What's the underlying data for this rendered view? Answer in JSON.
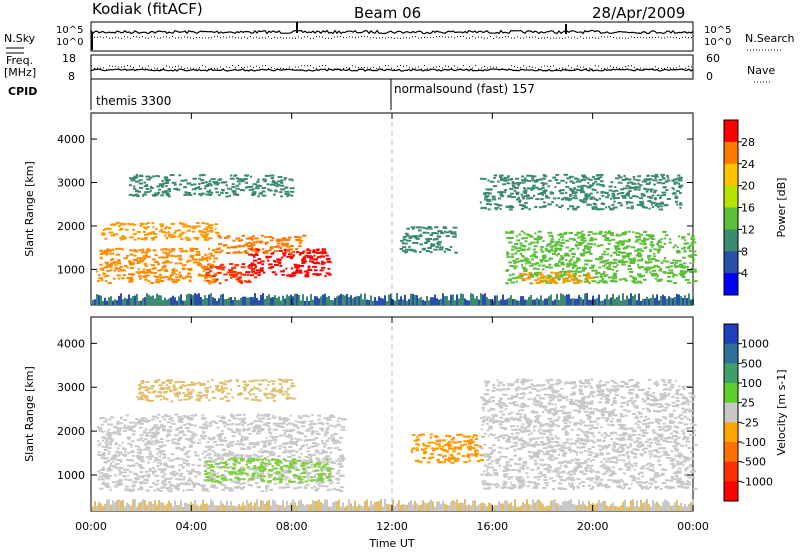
{
  "header": {
    "station": "Kodiak (fitACF)",
    "beam": "Beam 06",
    "date": "28/Apr/2009"
  },
  "top_panels": {
    "nsky": {
      "label": "N.Sky",
      "ticks": [
        "10^5",
        "10^0"
      ],
      "right_ticks": [
        "10^5",
        "10^0"
      ],
      "right_label": "N.Search",
      "right_label_style": "dotted"
    },
    "freq": {
      "label_line1": "Freq.",
      "label_line2": "[MHz]",
      "ticks": [
        "18",
        "8"
      ],
      "right_ticks": [
        "60",
        "0"
      ],
      "right_label": "Nave",
      "right_label_style": "dotted"
    },
    "cpid": {
      "label": "CPID",
      "segments": [
        {
          "start_hour": 0,
          "label": "themis 3300"
        },
        {
          "start_hour": 12,
          "label": "normalsound (fast) 157"
        }
      ]
    }
  },
  "chart_data": [
    {
      "type": "heatmap",
      "name": "power",
      "x_range_hours": [
        0,
        24
      ],
      "ylim": [
        180,
        4600
      ],
      "ylabel": "Slant Range [km]",
      "yticks": [
        1000,
        2000,
        3000,
        4000
      ],
      "colorbar": {
        "label": "Power [dB]",
        "ticks": [
          "28",
          "24",
          "20",
          "16",
          "12",
          "8",
          "4"
        ],
        "colors": [
          "#ff0000",
          "#ff7a00",
          "#ffc200",
          "#b5e300",
          "#5cbf3a",
          "#3d8a72",
          "#2a4fa8",
          "#0000ff"
        ]
      },
      "regions": [
        {
          "h0": 6.0,
          "h1": 9.5,
          "r0": 850,
          "r1": 1500,
          "c": "#ff0000"
        },
        {
          "h0": 4.5,
          "h1": 6.5,
          "r0": 700,
          "r1": 1150,
          "c": "#ff3300"
        },
        {
          "h0": 0.2,
          "h1": 5.0,
          "r0": 700,
          "r1": 1500,
          "c": "#ff8c00"
        },
        {
          "h0": 0.3,
          "h1": 5.0,
          "r0": 1700,
          "r1": 2100,
          "c": "#ff9900"
        },
        {
          "h0": 5.0,
          "h1": 8.5,
          "r0": 1400,
          "r1": 1800,
          "c": "#ff7a00"
        },
        {
          "h0": 12.3,
          "h1": 14.5,
          "r0": 1400,
          "r1": 2000,
          "c": "#3d8a72"
        },
        {
          "h0": 16.5,
          "h1": 24.0,
          "r0": 700,
          "r1": 1900,
          "c": "#5cbf3a"
        },
        {
          "h0": 17.0,
          "h1": 20.0,
          "r0": 700,
          "r1": 950,
          "c": "#ff9900"
        },
        {
          "h0": 15.5,
          "h1": 23.5,
          "r0": 2400,
          "r1": 3200,
          "c": "#3d8a72"
        },
        {
          "h0": 1.5,
          "h1": 8.0,
          "r0": 2700,
          "r1": 3200,
          "c": "#3d8a72"
        }
      ]
    },
    {
      "type": "heatmap",
      "name": "velocity",
      "x_range_hours": [
        0,
        24
      ],
      "ylim": [
        180,
        4600
      ],
      "ylabel": "Slant Range [km]",
      "yticks": [
        1000,
        2000,
        3000,
        4000
      ],
      "xticks": [
        "00:00",
        "04:00",
        "08:00",
        "12:00",
        "16:00",
        "20:00",
        "00:00"
      ],
      "xlabel": "Time UT",
      "colorbar": {
        "label": "Velocity [m s-1]",
        "ticks": [
          "1000",
          "500",
          "100",
          "25",
          "-25",
          "-100",
          "-500",
          "-1000"
        ],
        "colors": [
          "#1f3fbf",
          "#2f6f9a",
          "#3f9f6a",
          "#5fcf2a",
          "#c8c8c8",
          "#ffa500",
          "#ff7000",
          "#ff3000",
          "#ff0000"
        ]
      },
      "regions": [
        {
          "h0": 0.2,
          "h1": 10.0,
          "r0": 650,
          "r1": 2400,
          "c": "#c8c8c8"
        },
        {
          "h0": 4.5,
          "h1": 9.5,
          "r0": 850,
          "r1": 1400,
          "c": "#7fcf3a"
        },
        {
          "h0": 12.7,
          "h1": 15.5,
          "r0": 1300,
          "r1": 1950,
          "c": "#ff9900"
        },
        {
          "h0": 15.5,
          "h1": 24.0,
          "r0": 700,
          "r1": 3200,
          "c": "#c8c8c8"
        },
        {
          "h0": 1.8,
          "h1": 8.0,
          "r0": 2700,
          "r1": 3200,
          "c": "#e0c070"
        }
      ]
    }
  ]
}
